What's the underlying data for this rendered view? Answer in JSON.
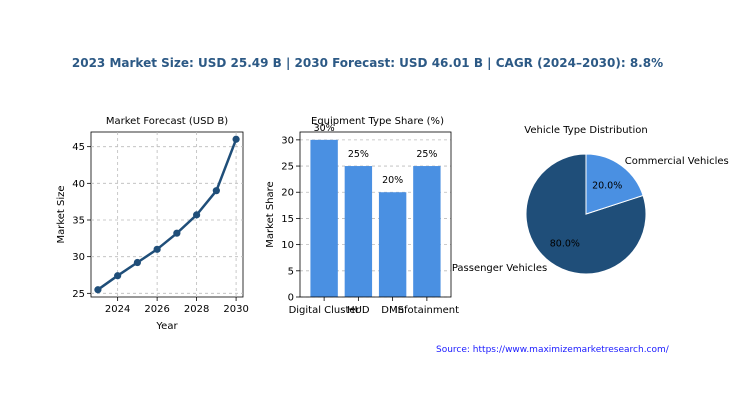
{
  "headline": "2023 Market Size: USD 25.49 B | 2030 Forecast: USD 46.01 B | CAGR (2024–2030): 8.8%",
  "source": "Source: https://www.maximizemarketresearch.com/",
  "colors": {
    "line": "#1f4e79",
    "bar": "#4a90e2",
    "pie_dark": "#1f4e79",
    "pie_light": "#4a90e2",
    "headline": "#2c5985"
  },
  "chart_data": [
    {
      "type": "line",
      "title": "Market Forecast (USD B)",
      "xlabel": "Year",
      "ylabel": "Market Size",
      "x": [
        2023,
        2024,
        2025,
        2026,
        2027,
        2028,
        2029,
        2030
      ],
      "values": [
        25.49,
        27.4,
        29.2,
        31.0,
        33.2,
        35.7,
        39.0,
        46.01
      ],
      "xticks": [
        "2024",
        "2026",
        "2028",
        "2030"
      ],
      "yticks": [
        "25",
        "30",
        "35",
        "40",
        "45"
      ],
      "xlim": [
        2022.65,
        2030.35
      ],
      "ylim": [
        24.5,
        47.0
      ],
      "grid": true
    },
    {
      "type": "bar",
      "title": "Equipment Type Share (%)",
      "xlabel": "",
      "ylabel": "Market Share",
      "categories": [
        "Digital Cluster",
        "HUD",
        "DMS",
        "Infotainment"
      ],
      "values": [
        30,
        25,
        20,
        25
      ],
      "data_labels": [
        "30%",
        "25%",
        "20%",
        "25%"
      ],
      "yticks": [
        "0",
        "5",
        "10",
        "15",
        "20",
        "25",
        "30"
      ],
      "ylim": [
        0,
        31.5
      ],
      "grid": true
    },
    {
      "type": "pie",
      "title": "Vehicle Type Distribution",
      "labels": [
        "Passenger Vehicles",
        "Commercial Vehicles"
      ],
      "values": [
        80.0,
        20.0
      ],
      "pct_labels": [
        "80.0%",
        "20.0%"
      ]
    }
  ]
}
